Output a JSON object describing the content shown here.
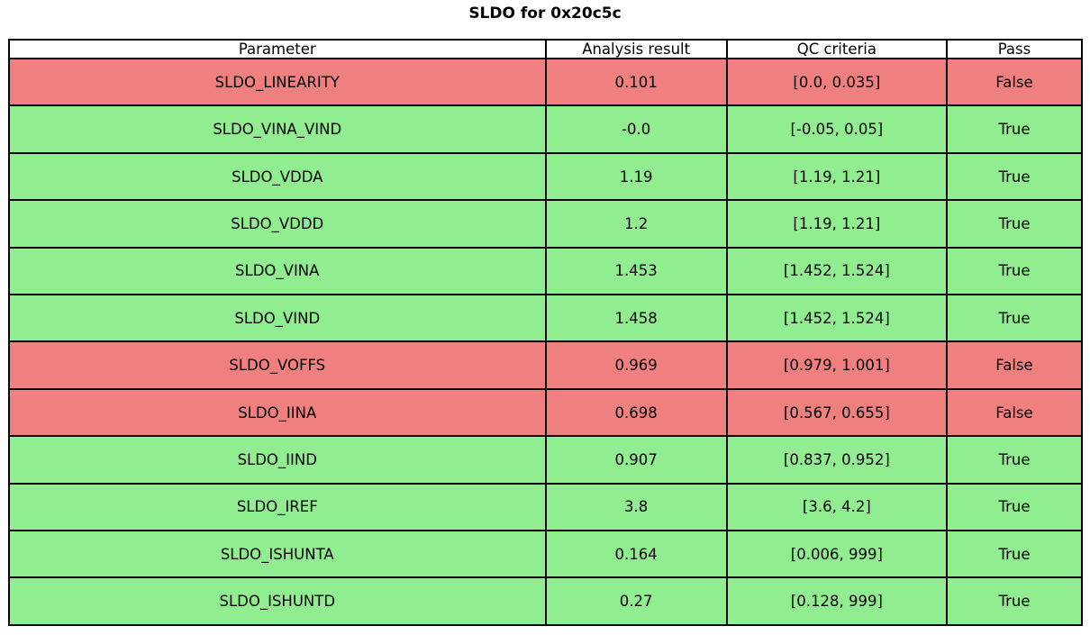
{
  "chart_data": {
    "type": "table",
    "title": "SLDO for 0x20c5c",
    "columns": [
      "Parameter",
      "Analysis result",
      "QC criteria",
      "Pass"
    ],
    "rows": [
      {
        "parameter": "SLDO_LINEARITY",
        "analysis_result": "0.101",
        "qc_criteria": "[0.0, 0.035]",
        "pass": "False"
      },
      {
        "parameter": "SLDO_VINA_VIND",
        "analysis_result": "-0.0",
        "qc_criteria": "[-0.05, 0.05]",
        "pass": "True"
      },
      {
        "parameter": "SLDO_VDDA",
        "analysis_result": "1.19",
        "qc_criteria": "[1.19, 1.21]",
        "pass": "True"
      },
      {
        "parameter": "SLDO_VDDD",
        "analysis_result": "1.2",
        "qc_criteria": "[1.19, 1.21]",
        "pass": "True"
      },
      {
        "parameter": "SLDO_VINA",
        "analysis_result": "1.453",
        "qc_criteria": "[1.452, 1.524]",
        "pass": "True"
      },
      {
        "parameter": "SLDO_VIND",
        "analysis_result": "1.458",
        "qc_criteria": "[1.452, 1.524]",
        "pass": "True"
      },
      {
        "parameter": "SLDO_VOFFS",
        "analysis_result": "0.969",
        "qc_criteria": "[0.979, 1.001]",
        "pass": "False"
      },
      {
        "parameter": "SLDO_IINA",
        "analysis_result": "0.698",
        "qc_criteria": "[0.567, 0.655]",
        "pass": "False"
      },
      {
        "parameter": "SLDO_IIND",
        "analysis_result": "0.907",
        "qc_criteria": "[0.837, 0.952]",
        "pass": "True"
      },
      {
        "parameter": "SLDO_IREF",
        "analysis_result": "3.8",
        "qc_criteria": "[3.6, 4.2]",
        "pass": "True"
      },
      {
        "parameter": "SLDO_ISHUNTA",
        "analysis_result": "0.164",
        "qc_criteria": "[0.006, 999]",
        "pass": "True"
      },
      {
        "parameter": "SLDO_ISHUNTD",
        "analysis_result": "0.27",
        "qc_criteria": "[0.128, 999]",
        "pass": "True"
      }
    ],
    "layout": {
      "grid": "full-borders",
      "legend_position": "none",
      "header_background": "#ffffff"
    }
  },
  "colors": {
    "pass_row_bg": "#90ee90",
    "fail_row_bg": "#f08080",
    "header_bg": "#ffffff",
    "border": "#000000",
    "text": "#000000"
  }
}
